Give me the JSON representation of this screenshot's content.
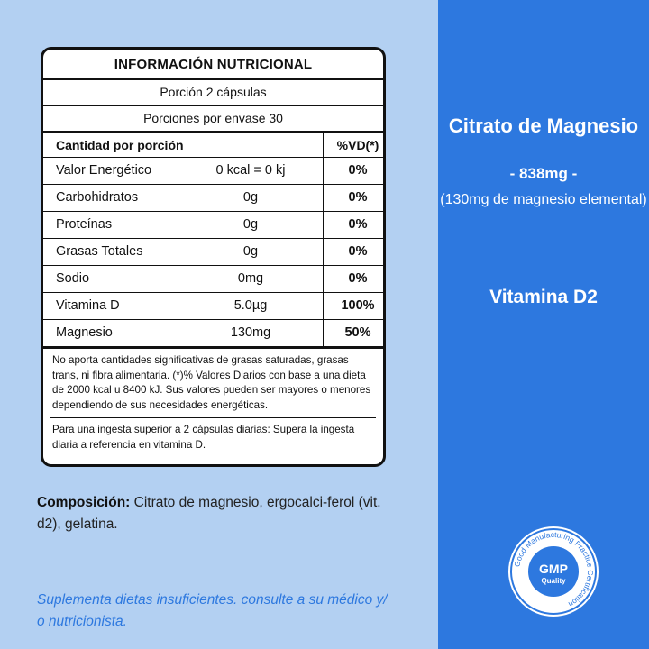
{
  "label": {
    "title": "INFORMACIÓN NUTRICIONAL",
    "serving": "Porción 2 cápsulas",
    "servings_per_container": "Porciones por envase 30",
    "col_header_name": "Cantidad por porción",
    "col_header_vd": "%VD(*)",
    "rows": [
      {
        "name": "Valor Energético",
        "amount": "0 kcal = 0 kj",
        "vd": "0%"
      },
      {
        "name": "Carbohidratos",
        "amount": "0g",
        "vd": "0%"
      },
      {
        "name": "Proteínas",
        "amount": "0g",
        "vd": "0%"
      },
      {
        "name": "Grasas Totales",
        "amount": "0g",
        "vd": "0%"
      },
      {
        "name": "Sodio",
        "amount": "0mg",
        "vd": "0%"
      },
      {
        "name": "Vitamina D",
        "amount": "5.0µg",
        "vd": "100%"
      },
      {
        "name": "Magnesio",
        "amount": "130mg",
        "vd": "50%"
      }
    ],
    "note1": "No aporta cantidades significativas de grasas saturadas, grasas trans, ni fibra alimentaria. (*)% Valores Diarios con base a una dieta de 2000 kcal u 8400 kJ. Sus valores pueden ser mayores o menores dependiendo de sus necesidades energéticas.",
    "note2": "Para una ingesta superior a 2 cápsulas diarias: Supera la ingesta diaria a referencia en vitamina D."
  },
  "composition": {
    "label": "Composición:",
    "text": " Citrato de magnesio, ergocalci-ferol (vit. d2), gelatina."
  },
  "supplement_note": "Suplementa dietas insuficientes. consulte a su médico y/ o nutricionista.",
  "product": {
    "name": "Citrato de Magnesio",
    "dose": "- 838mg -",
    "elemental": "(130mg de magnesio elemental)",
    "vitamin": "Vitamina D2"
  },
  "badge": {
    "center_top": "GMP",
    "center_bottom": "Quality",
    "ring_text": "Good Manufacturing Practice Certification"
  },
  "colors": {
    "background_left": "#b3d0f2",
    "background_right": "#2d78df",
    "accent": "#2d78df"
  }
}
